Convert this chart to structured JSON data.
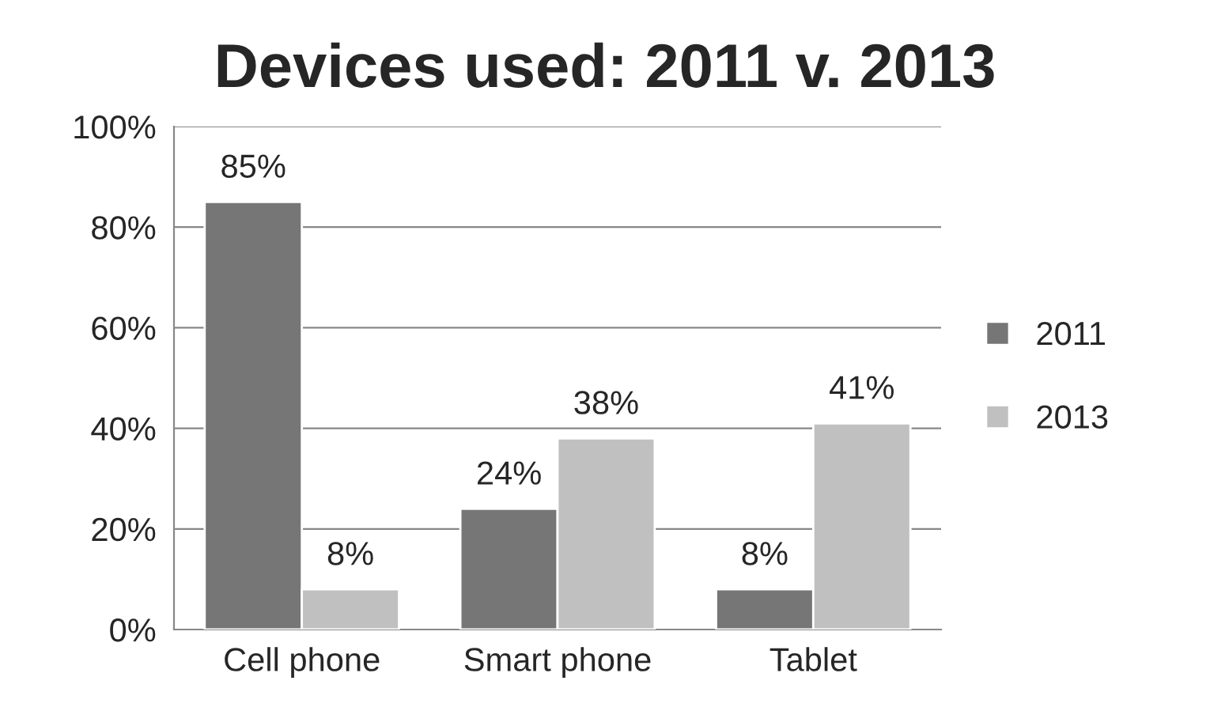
{
  "chart_data": {
    "type": "bar",
    "title": "Devices used: 2011 v. 2013",
    "categories": [
      "Cell phone",
      "Smart phone",
      "Tablet"
    ],
    "series": [
      {
        "name": "2011",
        "color": "#767676",
        "values": [
          85,
          24,
          8
        ],
        "value_labels": [
          "85%",
          "24%",
          "8%"
        ]
      },
      {
        "name": "2013",
        "color": "#c0c0c0",
        "values": [
          8,
          38,
          41
        ],
        "value_labels": [
          "8%",
          "38%",
          "41%"
        ]
      }
    ],
    "ylim": [
      0,
      100
    ],
    "yticks": [
      {
        "value": 0,
        "label": "0%"
      },
      {
        "value": 20,
        "label": "20%"
      },
      {
        "value": 40,
        "label": "40%"
      },
      {
        "value": 60,
        "label": "60%"
      },
      {
        "value": 80,
        "label": "80%"
      },
      {
        "value": 100,
        "label": "100%"
      }
    ],
    "grid": "y",
    "legend": "right"
  }
}
